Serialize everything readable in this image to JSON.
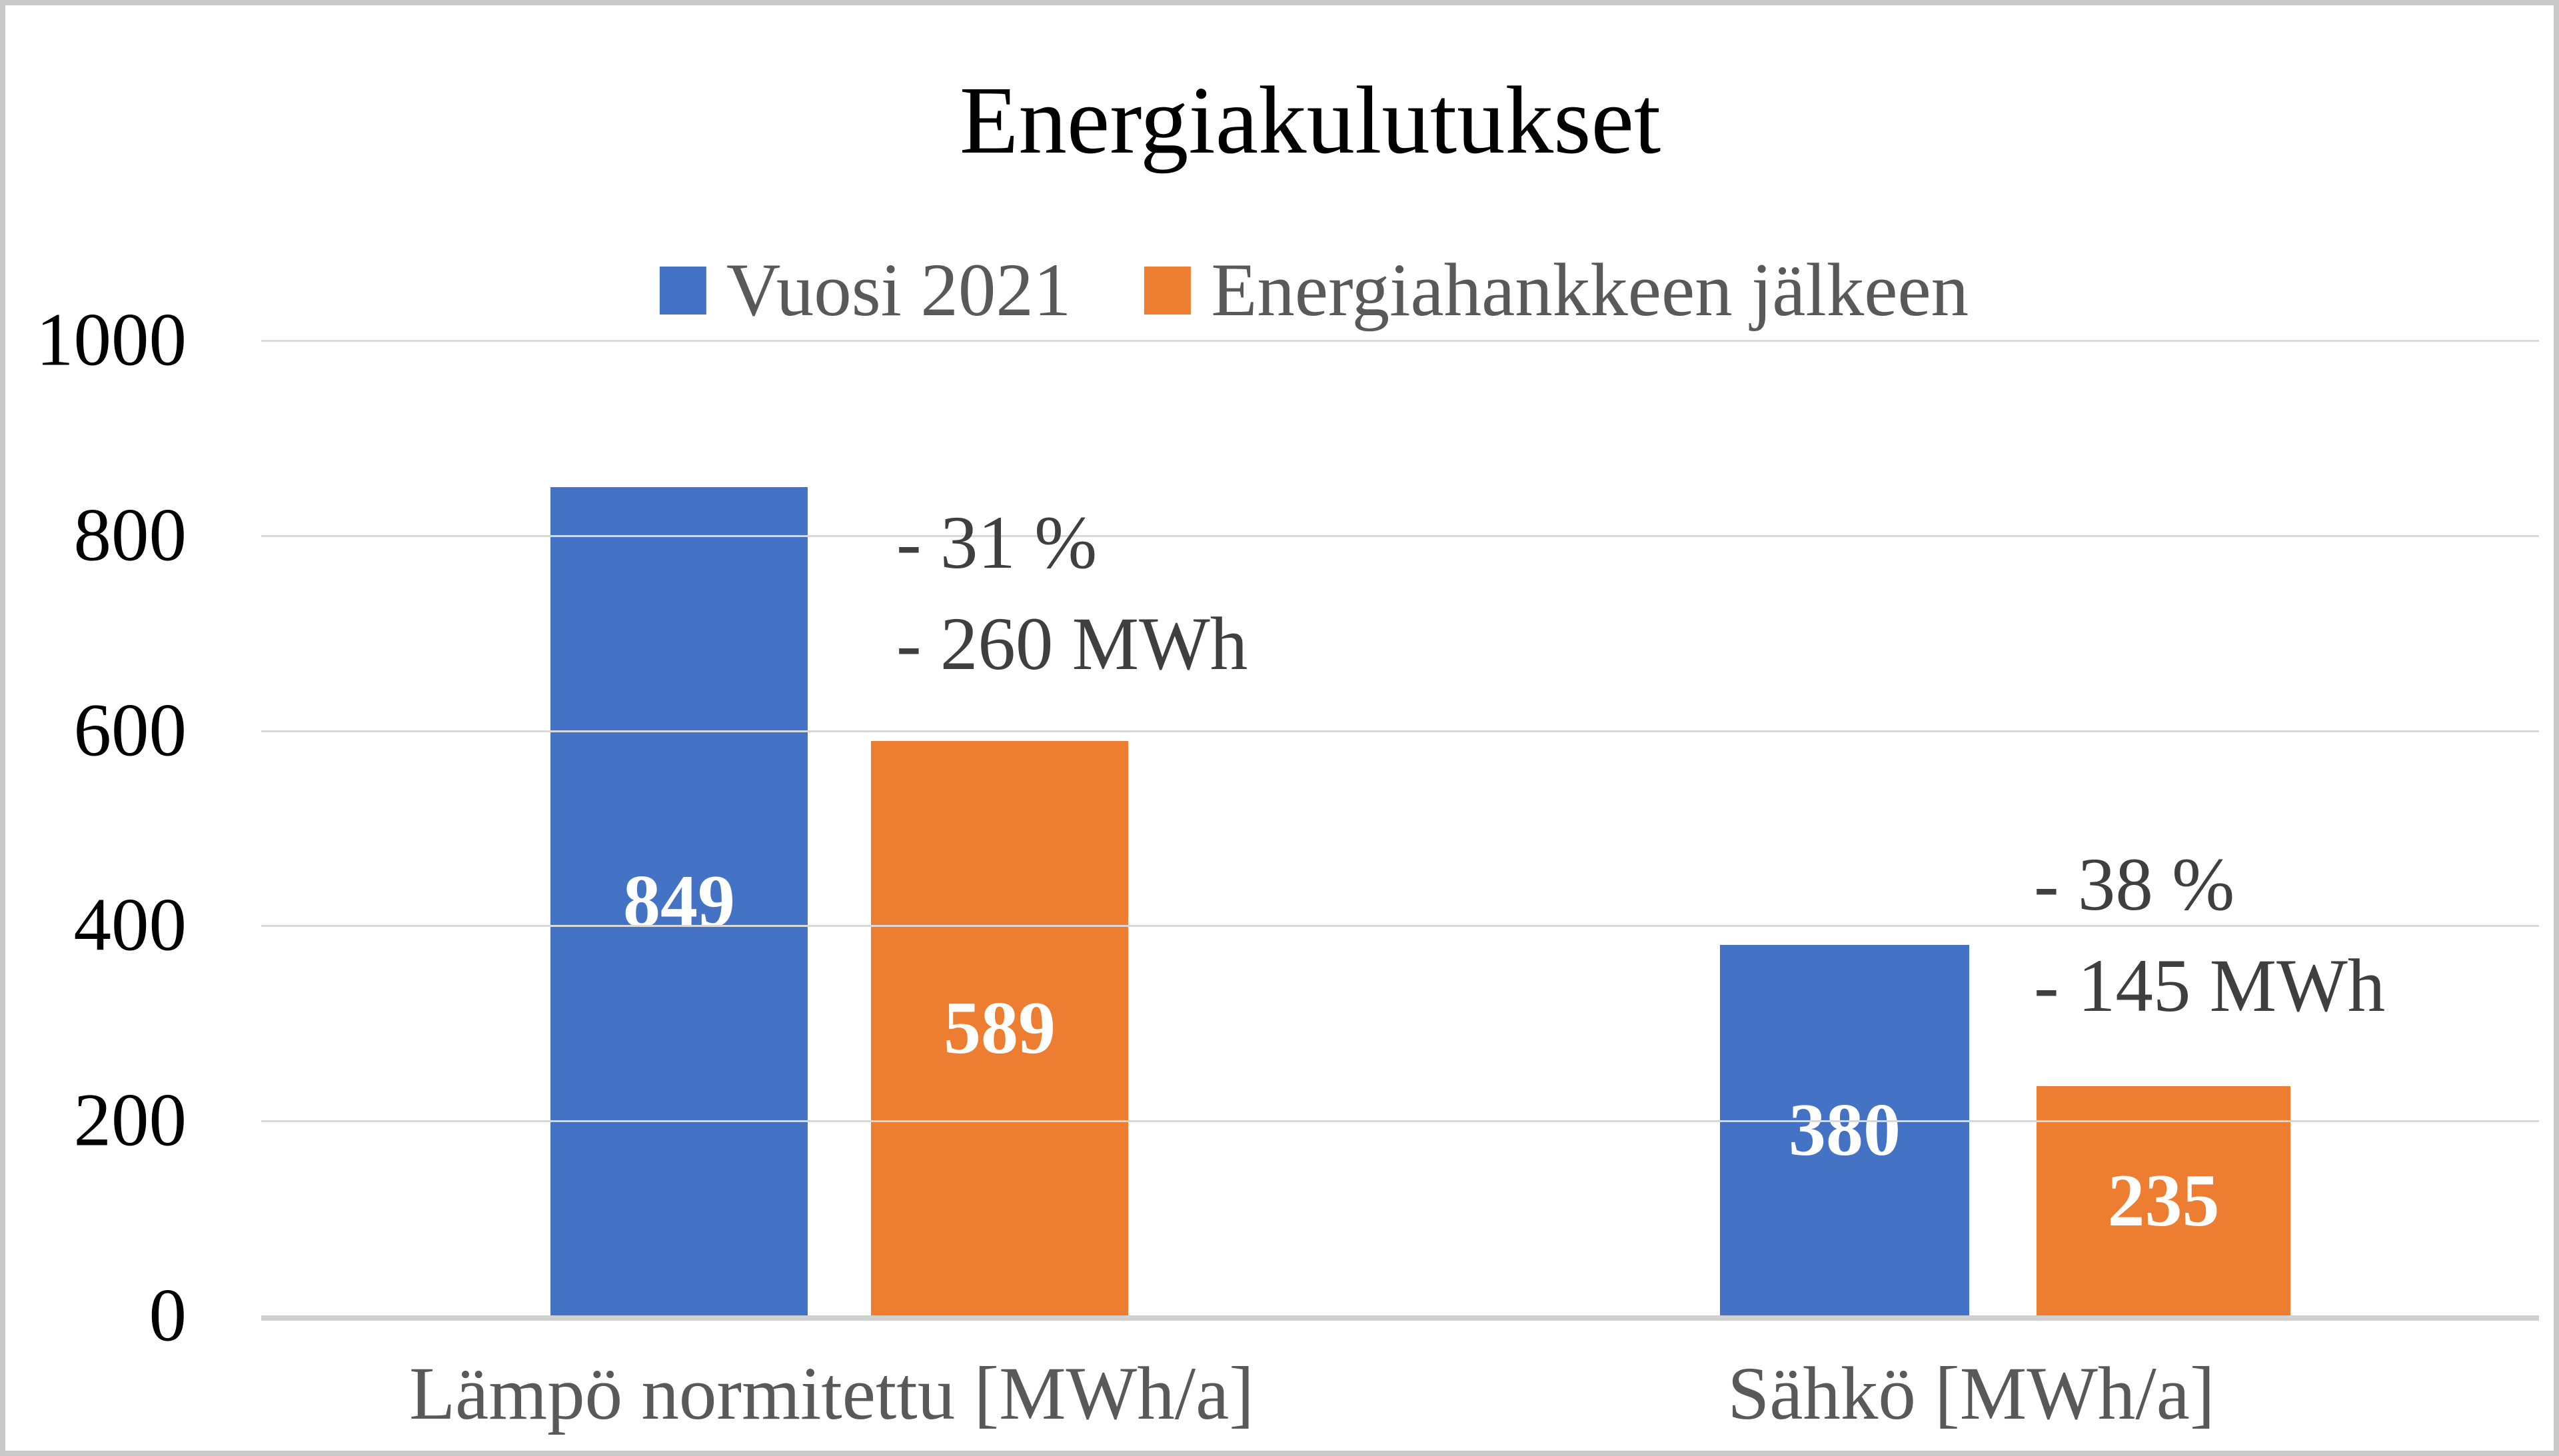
{
  "chart_data": {
    "type": "bar",
    "title": "Energiakulutukset",
    "categories": [
      "Lämpö normitettu [MWh/a]",
      "Sähkö [MWh/a]"
    ],
    "series": [
      {
        "name": "Vuosi 2021",
        "color": "#4472C4",
        "values": [
          849,
          380
        ]
      },
      {
        "name": "Energiahankkeen jälkeen",
        "color": "#ED7D31",
        "values": [
          589,
          235
        ]
      }
    ],
    "annotations": [
      {
        "lines": [
          "- 31 %",
          "- 260 MWh"
        ]
      },
      {
        "lines": [
          "- 38 %",
          "- 145 MWh"
        ]
      }
    ],
    "y_axis": {
      "min": 0,
      "max": 1000,
      "step": 200,
      "tick_labels": [
        "1000",
        "800",
        "600",
        "400",
        "200",
        "0"
      ]
    },
    "grid": true,
    "legend_position": "top-center",
    "bar_label_color": "#FFFFFF"
  },
  "colors": {
    "series_blue": "#4472C4",
    "series_orange": "#ED7D31",
    "gridline": "#D9D9D9",
    "axis_line": "#D0D0D0",
    "tick_text": "#000000",
    "category_text": "#595959",
    "legend_text": "#595959",
    "annotation_text": "#3F3F3F",
    "title_text": "#000000",
    "background": "#FFFFFF",
    "frame_border": "#C9C9C9"
  }
}
